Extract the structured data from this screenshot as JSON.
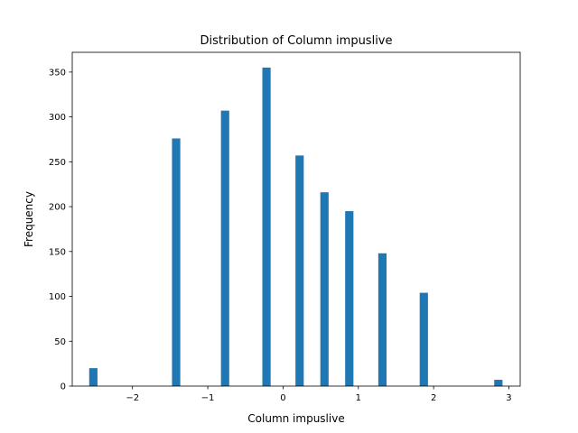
{
  "chart_data": {
    "type": "bar",
    "title": "Distribution of Column impuslive",
    "xlabel": "Column impuslive",
    "ylabel": "Frequency",
    "xlim": [
      -2.8,
      3.15
    ],
    "ylim": [
      0,
      372
    ],
    "xticks": [
      -2,
      -1,
      0,
      1,
      2,
      3
    ],
    "xtick_labels": [
      "−2",
      "−1",
      "0",
      "1",
      "2",
      "3"
    ],
    "yticks": [
      0,
      50,
      100,
      150,
      200,
      250,
      300,
      350
    ],
    "ytick_labels": [
      "0",
      "50",
      "100",
      "150",
      "200",
      "250",
      "300",
      "350"
    ],
    "bar_width": 0.11,
    "bar_color": "#1f77b4",
    "grid": false,
    "bars": [
      {
        "x": -2.52,
        "value": 20
      },
      {
        "x": -1.42,
        "value": 276
      },
      {
        "x": -0.77,
        "value": 307
      },
      {
        "x": -0.22,
        "value": 355
      },
      {
        "x": 0.22,
        "value": 257
      },
      {
        "x": 0.55,
        "value": 216
      },
      {
        "x": 0.88,
        "value": 195
      },
      {
        "x": 1.32,
        "value": 148
      },
      {
        "x": 1.87,
        "value": 104
      },
      {
        "x": 2.86,
        "value": 7
      }
    ]
  }
}
